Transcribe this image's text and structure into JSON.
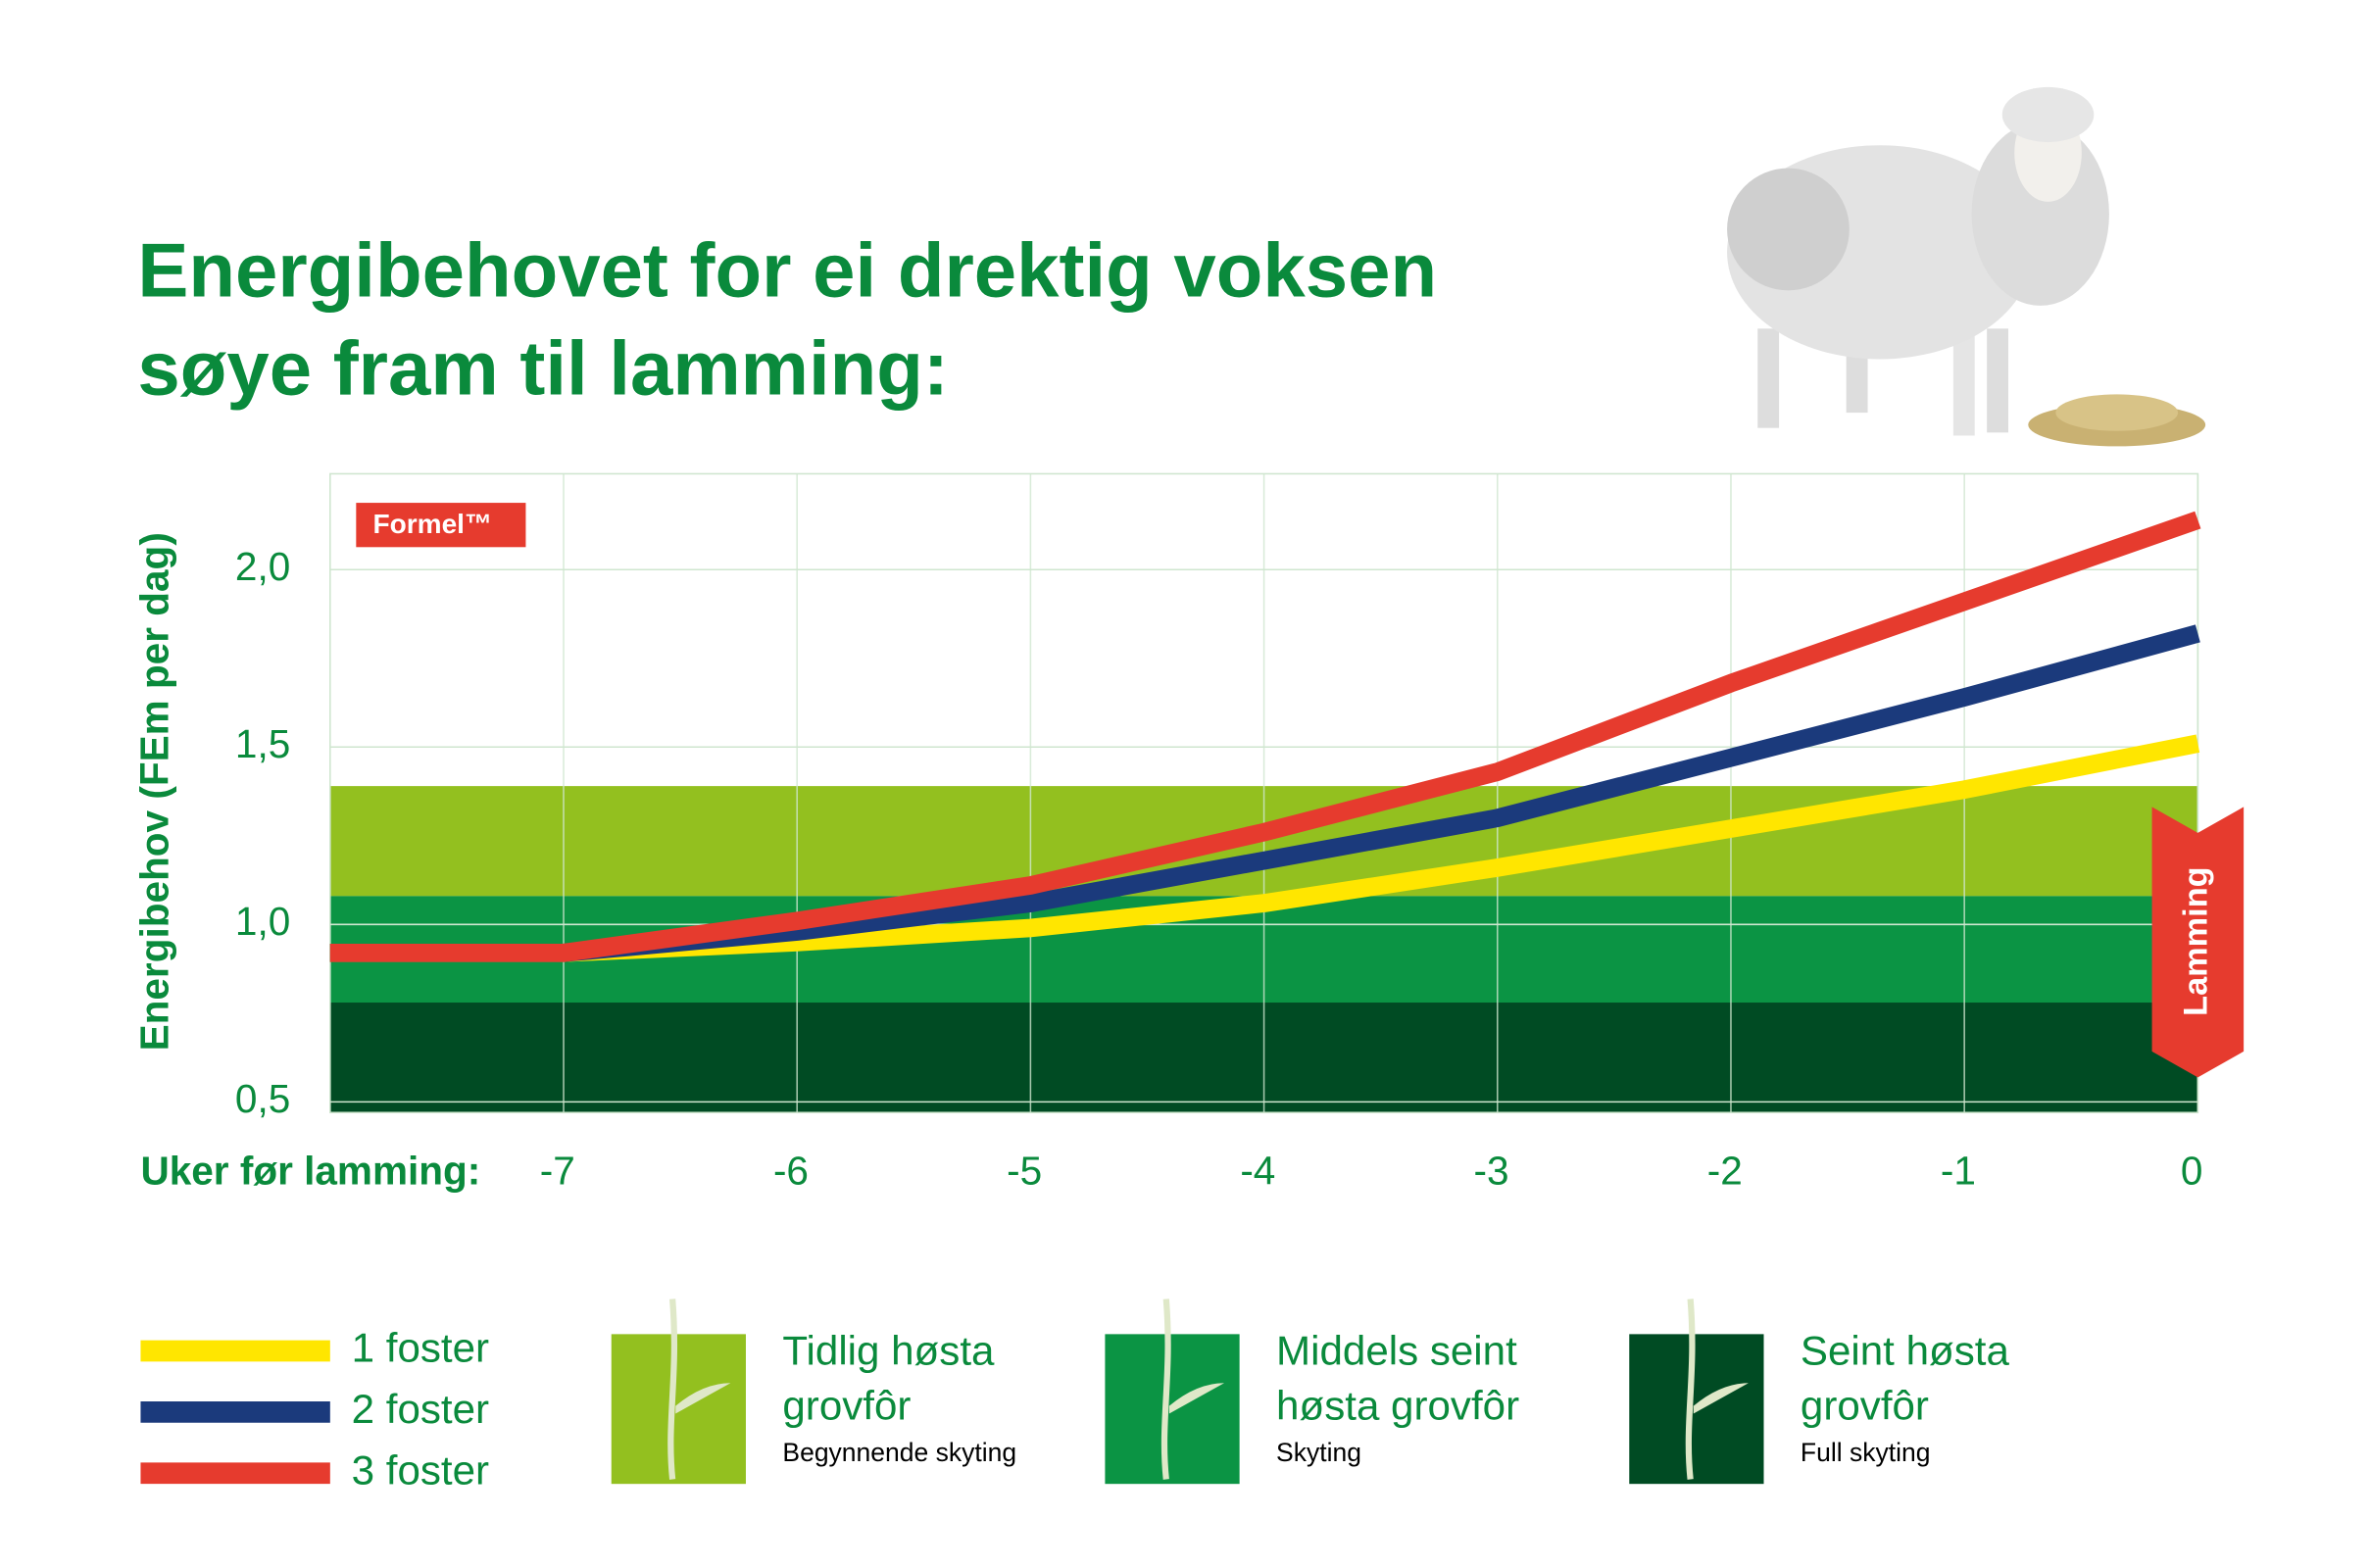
{
  "chart_data": {
    "type": "line",
    "title": "Energibehovet for ei drektig voksen søye fram til lamming:",
    "logo": "Formel™",
    "y_label": "Energibehov (FEm per dag)",
    "x_label": "Uker før lamming:",
    "annotation": "Lamming",
    "x": [
      -8,
      -7,
      -6,
      -5,
      -4,
      -3,
      -2,
      -1,
      0
    ],
    "xlim": [
      -8,
      0
    ],
    "xticks": [
      -7,
      -6,
      -5,
      -4,
      -3,
      -2,
      -1,
      0
    ],
    "ylim": [
      0.47,
      2.27
    ],
    "yticks": [
      {
        "value": 0.5,
        "label": "0,5"
      },
      {
        "value": 1,
        "label": "1,0"
      },
      {
        "value": 1.5,
        "label": "1,5"
      },
      {
        "value": 2,
        "label": "2,0"
      }
    ],
    "grid": true,
    "series": [
      {
        "name": "1 foster",
        "color": "#ffe600",
        "values": [
          0.92,
          0.92,
          0.95,
          0.99,
          1.06,
          1.16,
          1.27,
          1.38,
          1.51
        ]
      },
      {
        "name": "2 foster",
        "color": "#1b3a7c",
        "values": [
          0.92,
          0.92,
          0.98,
          1.06,
          1.18,
          1.3,
          1.47,
          1.64,
          1.82
        ]
      },
      {
        "name": "3 foster",
        "color": "#e63b2e",
        "values": [
          0.92,
          0.92,
          1.01,
          1.11,
          1.26,
          1.43,
          1.68,
          1.91,
          2.14
        ]
      }
    ],
    "bands": [
      {
        "name": "Tidlig høsta grovfôr",
        "subtitle": "Begynnende skyting",
        "from": 1.08,
        "to": 1.39,
        "color": "#93c01f"
      },
      {
        "name": "Middels seint høsta grovfôr",
        "subtitle": "Skyting",
        "from": 0.78,
        "to": 1.08,
        "color": "#0b9444"
      },
      {
        "name": "Seint høsta grovfôr",
        "subtitle": "Full skyting",
        "from": 0.47,
        "to": 0.78,
        "color": "#004b23"
      }
    ]
  }
}
